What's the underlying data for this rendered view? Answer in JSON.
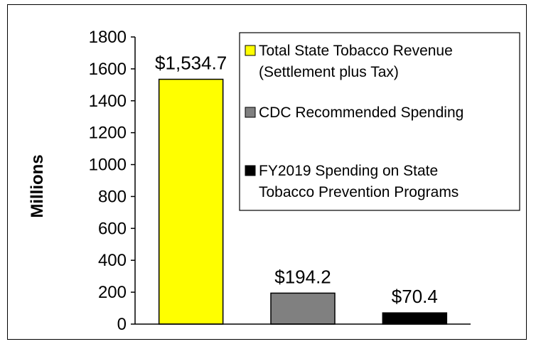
{
  "chart_data": {
    "type": "bar",
    "categories": [
      "Total State Tobacco Revenue (Settlement plus Tax)",
      "CDC Recommended Spending",
      "FY2019 Spending on State Tobacco Prevention Programs"
    ],
    "values": [
      1534.7,
      194.2,
      70.4
    ],
    "data_labels": [
      "$1,534.7",
      "$194.2",
      "$70.4"
    ],
    "colors": [
      "#FFFF00",
      "#808080",
      "#000000"
    ],
    "ylabel": "Millions",
    "ylim": [
      0,
      1800
    ],
    "yticks": [
      0,
      200,
      400,
      600,
      800,
      1000,
      1200,
      1400,
      1600,
      1800
    ],
    "grid": false,
    "legend_position": "top-right",
    "legend": [
      {
        "lines": [
          "Total State Tobacco Revenue",
          "(Settlement plus Tax)"
        ],
        "color": "#FFFF00"
      },
      {
        "lines": [
          "CDC Recommended Spending"
        ],
        "color": "#808080"
      },
      {
        "lines": [
          "FY2019 Spending on State",
          "Tobacco Prevention Programs"
        ],
        "color": "#000000"
      }
    ]
  }
}
